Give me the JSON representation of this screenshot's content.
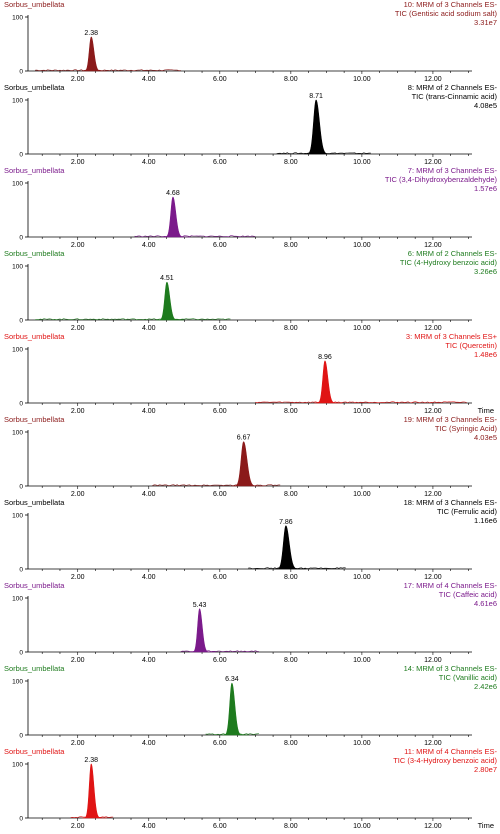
{
  "chart_data": [
    {
      "type": "line",
      "sample": "Sorbus_umbellata",
      "channel_line1": "10: MRM of 3 Channels ES-",
      "channel_line2": "TIC (Gentisic acid sodium salt)",
      "intensity": "3.31e7",
      "color": "#8b1a1a",
      "sample_color": "#8b1a1a",
      "peak_label": "2.38",
      "peak_x": 2.38,
      "peak_height": 63,
      "peak_width": 0.055,
      "baseline_range": [
        0.8,
        4.9
      ],
      "x_axis_label": "",
      "xlim": [
        0.6,
        13.1
      ],
      "ylim": [
        0,
        100
      ],
      "y_ticks": [
        0,
        100
      ],
      "x_ticks": [
        "2.00",
        "4.00",
        "6.00",
        "8.00",
        "10.00",
        "12.00"
      ]
    },
    {
      "type": "line",
      "sample": "Sorbus_umbellata",
      "channel_line1": "8: MRM of 2 Channels ES-",
      "channel_line2": "TIC (trans-Cinnamic acid)",
      "intensity": "4.08e5",
      "color": "#000000",
      "sample_color": "#000000",
      "peak_label": "8.71",
      "peak_x": 8.71,
      "peak_height": 100,
      "peak_width": 0.07,
      "baseline_range": [
        7.6,
        10.3
      ],
      "x_axis_label": "",
      "xlim": [
        0.6,
        13.1
      ],
      "ylim": [
        0,
        100
      ],
      "y_ticks": [
        0,
        100
      ],
      "x_ticks": [
        "2.00",
        "4.00",
        "6.00",
        "8.00",
        "10.00",
        "12.00"
      ]
    },
    {
      "type": "line",
      "sample": "Sorbus_umbellata",
      "channel_line1": "7: MRM of 3 Channels ES-",
      "channel_line2": "TIC (3,4-Dihydroxybenzaldehyde)",
      "intensity": "1.57e6",
      "color": "#7b1a8b",
      "sample_color": "#7b1a8b",
      "peak_label": "4.68",
      "peak_x": 4.68,
      "peak_height": 74,
      "peak_width": 0.06,
      "baseline_range": [
        3.6,
        7.0
      ],
      "x_axis_label": "",
      "xlim": [
        0.6,
        13.1
      ],
      "ylim": [
        0,
        100
      ],
      "y_ticks": [
        0,
        100
      ],
      "x_ticks": [
        "2.00",
        "4.00",
        "6.00",
        "8.00",
        "10.00",
        "12.00"
      ]
    },
    {
      "type": "line",
      "sample": "Sorbus_umbellata",
      "channel_line1": "6: MRM of 2 Channels ES-",
      "channel_line2": "TIC (4-Hydroxy benzoic acid)",
      "intensity": "3.26e6",
      "color": "#1e7b1e",
      "sample_color": "#1e7b1e",
      "peak_label": "4.51",
      "peak_x": 4.51,
      "peak_height": 70,
      "peak_width": 0.06,
      "baseline_range": [
        0.8,
        6.3
      ],
      "x_axis_label": "",
      "xlim": [
        0.6,
        13.1
      ],
      "ylim": [
        0,
        100
      ],
      "y_ticks": [
        0,
        100
      ],
      "x_ticks": [
        "2.00",
        "4.00",
        "6.00",
        "8.00",
        "10.00",
        "12.00"
      ]
    },
    {
      "type": "line",
      "sample": "Sorbus_umbellata",
      "channel_line1": "3: MRM of 3 Channels ES+",
      "channel_line2": "TIC (Quercetin)",
      "intensity": "1.48e6",
      "color": "#e01414",
      "sample_color": "#e01414",
      "peak_label": "8.96",
      "peak_x": 8.96,
      "peak_height": 78,
      "peak_width": 0.06,
      "baseline_range": [
        7.0,
        13.0
      ],
      "x_axis_label": "Time",
      "xlim": [
        0.6,
        13.1
      ],
      "ylim": [
        0,
        100
      ],
      "y_ticks": [
        0,
        100
      ],
      "x_ticks": [
        "2.00",
        "4.00",
        "6.00",
        "8.00",
        "10.00",
        "12.00"
      ]
    },
    {
      "type": "line",
      "sample": "Sorbus_umbellata",
      "channel_line1": "19: MRM of 3 Channels ES-",
      "channel_line2": "TIC (Syringic Acid)",
      "intensity": "4.03e5",
      "color": "#8b1a1a",
      "sample_color": "#8b1a1a",
      "peak_label": "6.67",
      "peak_x": 6.67,
      "peak_height": 82,
      "peak_width": 0.07,
      "baseline_range": [
        4.1,
        7.7
      ],
      "x_axis_label": "",
      "xlim": [
        0.6,
        13.1
      ],
      "ylim": [
        0,
        100
      ],
      "y_ticks": [
        0,
        100
      ],
      "x_ticks": [
        "2.00",
        "4.00",
        "6.00",
        "8.00",
        "10.00",
        "12.00"
      ]
    },
    {
      "type": "line",
      "sample": "Sorbus_umbellata",
      "channel_line1": "18: MRM of 3 Channels ES-",
      "channel_line2": "TIC (Ferrulic acid)",
      "intensity": "1.16e6",
      "color": "#000000",
      "sample_color": "#000000",
      "peak_label": "7.86",
      "peak_x": 7.86,
      "peak_height": 80,
      "peak_width": 0.07,
      "baseline_range": [
        6.8,
        9.6
      ],
      "x_axis_label": "",
      "xlim": [
        0.6,
        13.1
      ],
      "ylim": [
        0,
        100
      ],
      "y_ticks": [
        0,
        100
      ],
      "x_ticks": [
        "2.00",
        "4.00",
        "6.00",
        "8.00",
        "10.00",
        "12.00"
      ]
    },
    {
      "type": "line",
      "sample": "Sorbus_umbellata",
      "channel_line1": "17: MRM of 4 Channels ES-",
      "channel_line2": "TIC (Caffeic acid)",
      "intensity": "4.61e6",
      "color": "#7b1a8b",
      "sample_color": "#7b1a8b",
      "peak_label": "5.43",
      "peak_x": 5.43,
      "peak_height": 80,
      "peak_width": 0.055,
      "baseline_range": [
        4.9,
        7.1
      ],
      "x_axis_label": "",
      "xlim": [
        0.6,
        13.1
      ],
      "ylim": [
        0,
        100
      ],
      "y_ticks": [
        0,
        100
      ],
      "x_ticks": [
        "2.00",
        "4.00",
        "6.00",
        "8.00",
        "10.00",
        "12.00"
      ]
    },
    {
      "type": "line",
      "sample": "Sorbus_umbellata",
      "channel_line1": "14: MRM of 3 Channels ES-",
      "channel_line2": "TIC (Vanillic acid)",
      "intensity": "2.42e6",
      "color": "#1e7b1e",
      "sample_color": "#1e7b1e",
      "peak_label": "6.34",
      "peak_x": 6.34,
      "peak_height": 96,
      "peak_width": 0.06,
      "baseline_range": [
        5.6,
        7.1
      ],
      "x_axis_label": "",
      "xlim": [
        0.6,
        13.1
      ],
      "ylim": [
        0,
        100
      ],
      "y_ticks": [
        0,
        100
      ],
      "x_ticks": [
        "2.00",
        "4.00",
        "6.00",
        "8.00",
        "10.00",
        "12.00"
      ]
    },
    {
      "type": "line",
      "sample": "Sorbus_umbellata",
      "channel_line1": "11: MRM of 4 Channels ES-",
      "channel_line2": "TIC (3-4-Hydroxy benzoic acid)",
      "intensity": "2.80e7",
      "color": "#e01414",
      "sample_color": "#e01414",
      "peak_label": "2.38",
      "peak_x": 2.38,
      "peak_height": 100,
      "peak_width": 0.055,
      "baseline_range": [
        1.8,
        3.0
      ],
      "x_axis_label": "Time",
      "xlim": [
        0.6,
        13.1
      ],
      "ylim": [
        0,
        100
      ],
      "y_ticks": [
        0,
        100
      ],
      "x_ticks": [
        "2.00",
        "4.00",
        "6.00",
        "8.00",
        "10.00",
        "12.00"
      ]
    }
  ]
}
